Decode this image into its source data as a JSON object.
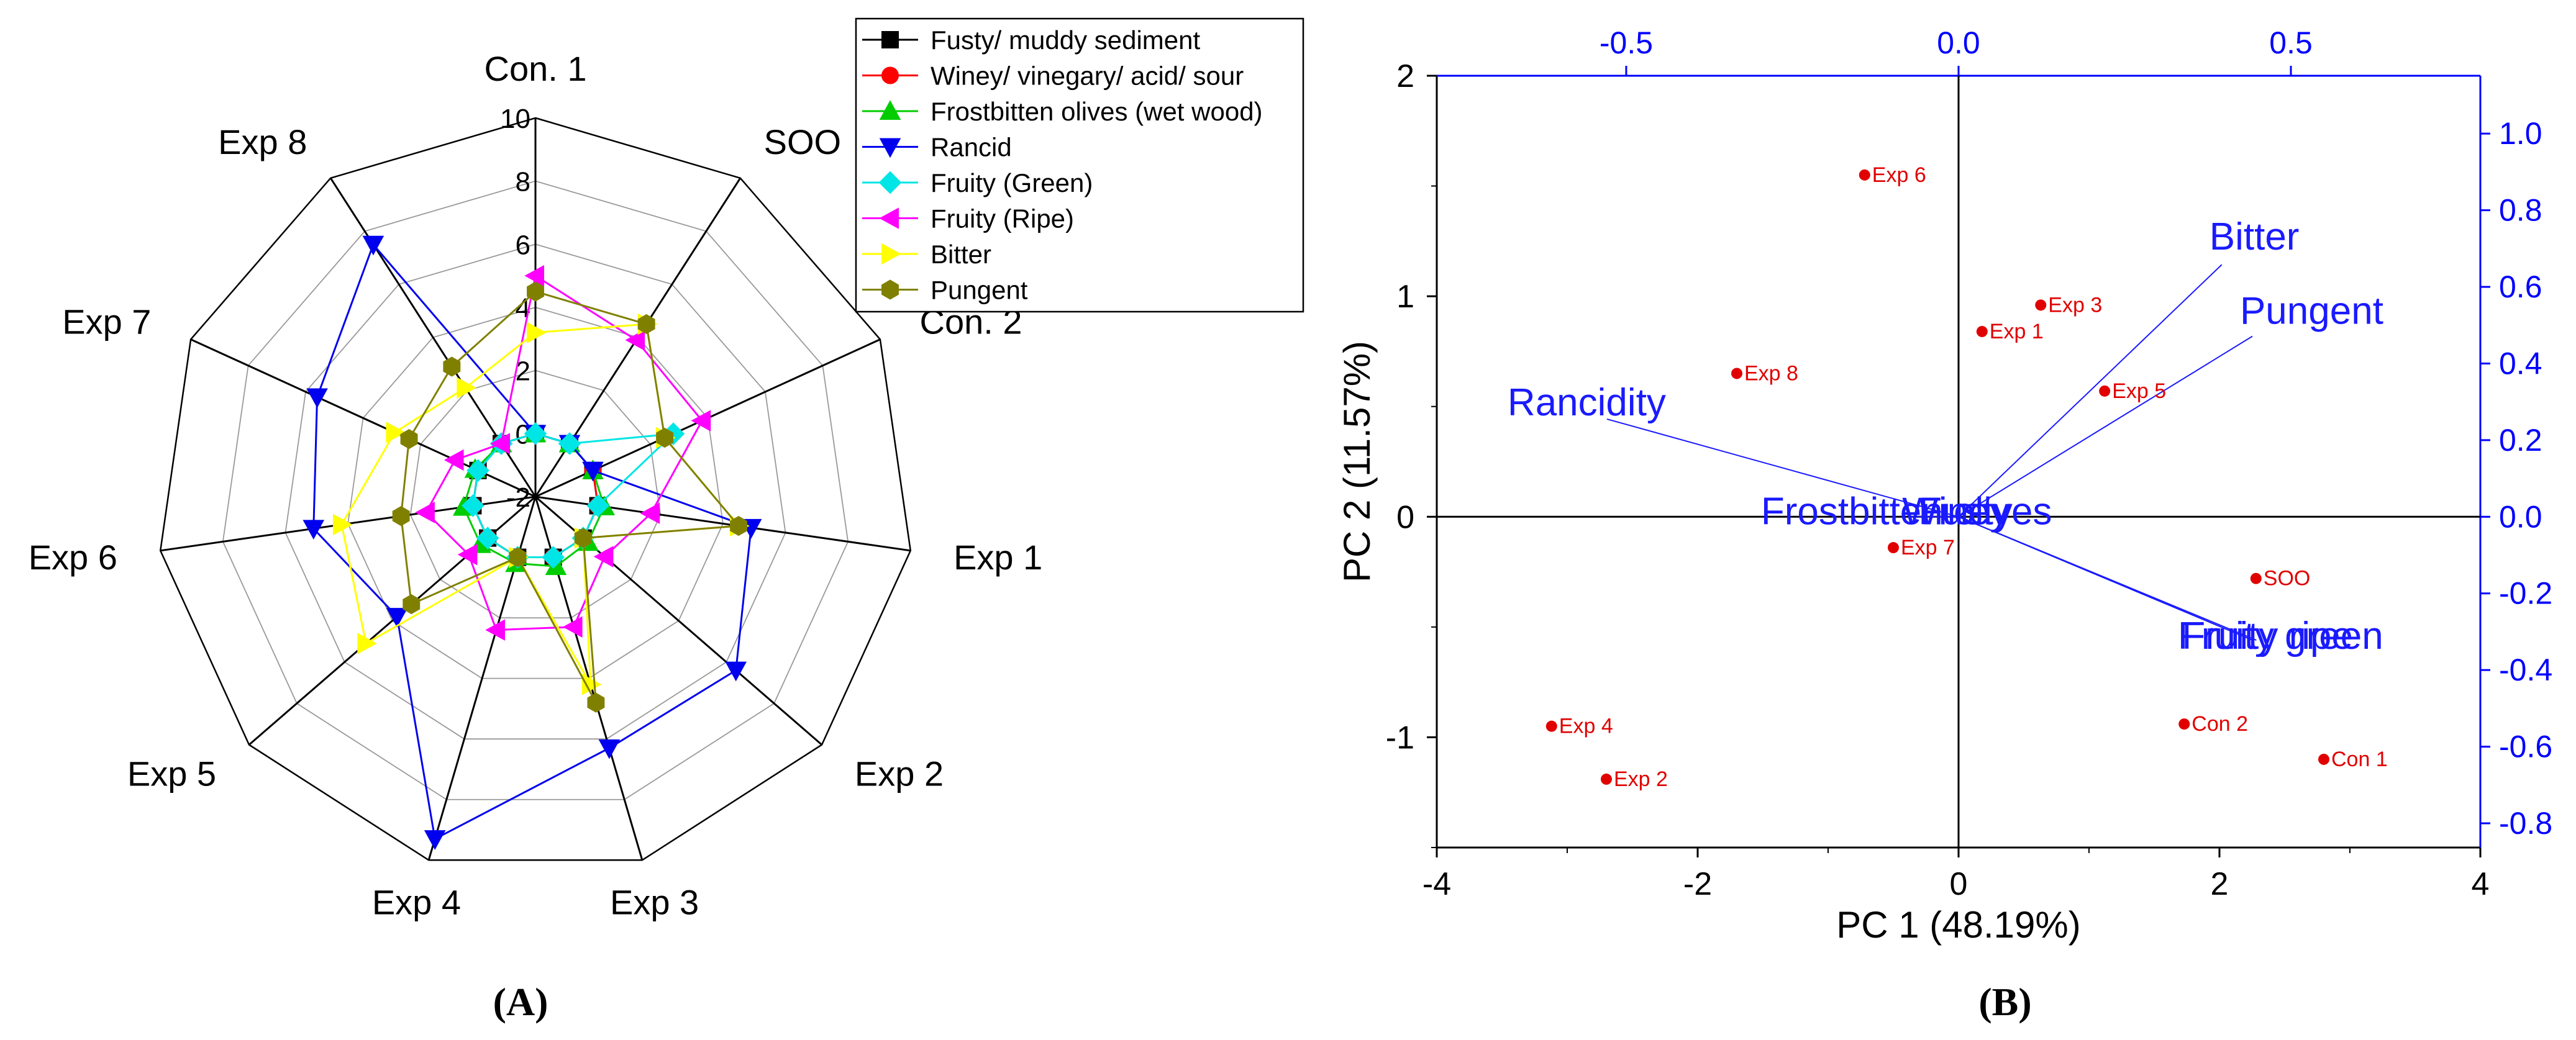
{
  "chart_data": [
    {
      "type": "radar",
      "panel_label": "(A)",
      "axes": [
        "Con. 1",
        "SOO",
        "Con. 2",
        "Exp 1",
        "Exp 2",
        "Exp 3",
        "Exp 4",
        "Exp 5",
        "Exp 6",
        "Exp 7",
        "Exp 8"
      ],
      "range": [
        -2,
        10
      ],
      "ticks": [
        -2,
        0,
        2,
        4,
        6,
        8,
        10
      ],
      "series": [
        {
          "name": "Fusty/ muddy sediment",
          "color": "#000000",
          "marker": "square",
          "values": [
            0,
            0,
            0,
            0,
            0,
            0,
            0,
            0,
            0,
            0,
            0
          ]
        },
        {
          "name": "Winey/ vinegary/ acid/ sour",
          "color": "#ff0000",
          "marker": "circle",
          "values": [
            0,
            0,
            0,
            0,
            0,
            0,
            0,
            0,
            0,
            0,
            0
          ]
        },
        {
          "name": "Frostbitten olives (wet wood)",
          "color": "#00cc00",
          "marker": "triangle-up",
          "values": [
            0,
            0,
            0,
            0.2,
            0.2,
            0.3,
            0.2,
            0.3,
            0.3,
            0.1,
            0
          ]
        },
        {
          "name": "Rancid",
          "color": "#0000ee",
          "marker": "triangle-down",
          "values": [
            0,
            0,
            0,
            4.9,
            6.4,
            6.3,
            9.3,
            3.8,
            5.1,
            5.6,
            7.5
          ]
        },
        {
          "name": "Fruity (Green)",
          "color": "#00e5e5",
          "marker": "diamond",
          "values": [
            0,
            0,
            2.8,
            0,
            0,
            0,
            0,
            0,
            0,
            0,
            0
          ]
        },
        {
          "name": "Fruity (Ripe)",
          "color": "#ff00ff",
          "marker": "triangle-left",
          "values": [
            5,
            3.9,
            3.8,
            1.7,
            0.9,
            2.3,
            2.4,
            0.8,
            1.5,
            0.8,
            0
          ]
        },
        {
          "name": "Bitter",
          "color": "#ffff00",
          "marker": "triangle-right",
          "values": [
            3.2,
            4.5,
            2.5,
            4.5,
            0,
            4.2,
            0,
            5.1,
            4.2,
            2.9,
            2.1
          ]
        },
        {
          "name": "Pungent",
          "color": "#808000",
          "marker": "hexagon",
          "values": [
            4.5,
            4.5,
            2.5,
            4.5,
            0,
            4.8,
            0,
            3.2,
            2.3,
            2.4,
            2.9
          ]
        }
      ]
    },
    {
      "type": "biplot",
      "panel_label": "(B)",
      "xlabel": "PC 1 (48.19%)",
      "ylabel": "PC 2 (11.57%)",
      "xlim": [
        -4,
        4
      ],
      "ylim": [
        -1.5,
        2
      ],
      "xticks": [
        -4,
        -2,
        0,
        2,
        4
      ],
      "yticks": [
        -1,
        0,
        1,
        2
      ],
      "xtick_labels": [
        "-4",
        "-2",
        "0",
        "2",
        "4"
      ],
      "ytick_labels": [
        "-1",
        "0",
        "1",
        "2"
      ],
      "top_xlim": [
        -0.785,
        0.785
      ],
      "top_xticks": [
        -0.5,
        0,
        0.5
      ],
      "top_xtick_labels": [
        "-0.5",
        "0.0",
        "0.5"
      ],
      "right_ylim": [
        -0.8632,
        1.151
      ],
      "right_yticks": [
        -0.8,
        -0.6,
        -0.4,
        -0.2,
        0,
        0.2,
        0.4,
        0.6,
        0.8,
        1.0
      ],
      "right_ytick_labels": [
        "-0.8",
        "-0.6",
        "-0.4",
        "-0.2",
        "0.0",
        "0.2",
        "0.4",
        "0.6",
        "0.8",
        "1.0"
      ],
      "scores": [
        {
          "label": "Exp 6",
          "x": -0.72,
          "y": 1.55
        },
        {
          "label": "Exp 3",
          "x": 0.63,
          "y": 0.96
        },
        {
          "label": "Exp 1",
          "x": 0.18,
          "y": 0.84
        },
        {
          "label": "Exp 8",
          "x": -1.7,
          "y": 0.65
        },
        {
          "label": "Exp 5",
          "x": 1.12,
          "y": 0.57
        },
        {
          "label": "Exp 7",
          "x": -0.5,
          "y": -0.14
        },
        {
          "label": "SOO",
          "x": 2.28,
          "y": -0.28
        },
        {
          "label": "Exp 4",
          "x": -3.12,
          "y": -0.95
        },
        {
          "label": "Con 2",
          "x": 1.73,
          "y": -0.94
        },
        {
          "label": "Exp 2",
          "x": -2.7,
          "y": -1.19
        },
        {
          "label": "Con 1",
          "x": 2.8,
          "y": -1.1
        }
      ],
      "loadings": [
        {
          "label": "Bitter",
          "x": 0.396,
          "y": 0.658
        },
        {
          "label": "Pungent",
          "x": 0.442,
          "y": 0.471
        },
        {
          "label": "Rancidity",
          "x": -0.529,
          "y": 0.255
        },
        {
          "label": "Fruity ripe",
          "x": 0.448,
          "y": -0.322
        },
        {
          "label": "Fruity green",
          "x": 0.442,
          "y": -0.322
        },
        {
          "label": "Frostbitten olives",
          "x": -0.073,
          "y": 0.0
        },
        {
          "label": "Winey",
          "x": -0.01,
          "y": 0.0
        },
        {
          "label": "Fusty",
          "x": 0.005,
          "y": 0.0
        }
      ],
      "colors": {
        "scores": "#e00000",
        "loadings": "#1a1aff",
        "axes": "#000000",
        "secondary_axes": "#0000ff"
      }
    }
  ]
}
